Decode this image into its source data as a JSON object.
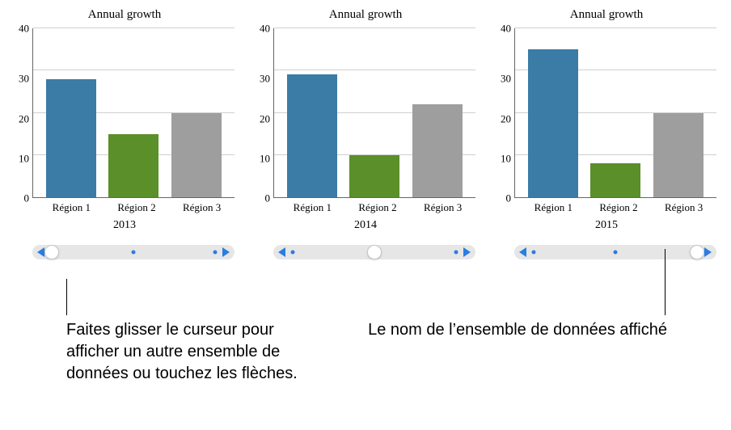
{
  "chart_title": "Annual growth",
  "ylim": [
    0,
    40
  ],
  "ytick_step": 10,
  "yticks": [
    "40",
    "30",
    "20",
    "10",
    "0"
  ],
  "categories": [
    "Région 1",
    "Région 2",
    "Région 3"
  ],
  "bar_colors": [
    "#3a7ca5",
    "#5a8f29",
    "#9e9e9e"
  ],
  "grid_color": "#cfcfcf",
  "axis_color": "#666666",
  "slider": {
    "track_bg": "#e6e6e6",
    "arrow_color": "#2a7de1",
    "dot_color": "#2a7de1",
    "thumb_bg": "#ffffff",
    "position_count": 3
  },
  "charts": [
    {
      "dataset_name": "2013",
      "values": [
        28,
        15,
        20
      ],
      "thumb_index": 0
    },
    {
      "dataset_name": "2014",
      "values": [
        29,
        10,
        22
      ],
      "thumb_index": 1
    },
    {
      "dataset_name": "2015",
      "values": [
        35,
        8,
        20
      ],
      "thumb_index": 2
    }
  ],
  "callouts": {
    "left": "Faites glisser le curseur pour afficher un autre ensemble de données ou touchez les flèches.",
    "right": "Le nom de l’ensemble de données affiché"
  }
}
